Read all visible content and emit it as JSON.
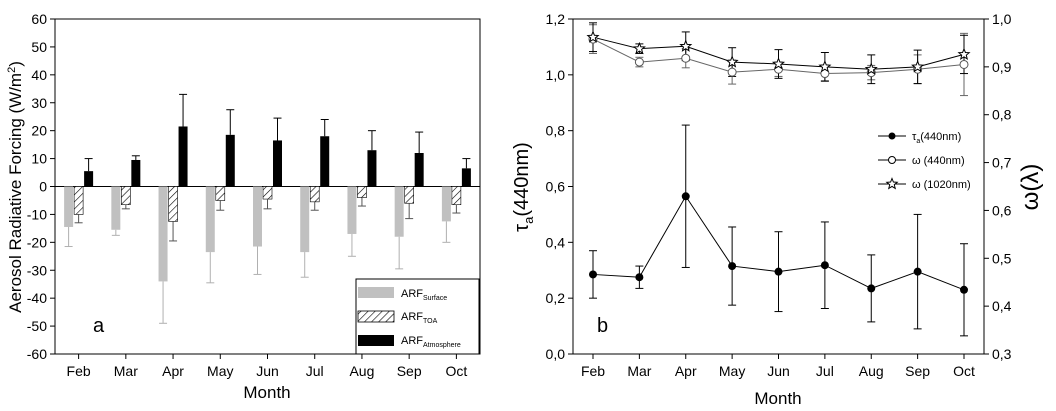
{
  "chart_data": [
    {
      "type": "bar",
      "panel_label": "a",
      "categories": [
        "Feb",
        "Mar",
        "Apr",
        "May",
        "Jun",
        "Jul",
        "Aug",
        "Sep",
        "Oct"
      ],
      "xlabel": "Month",
      "ylabel": "Aerosol Radiative Forcing (W/m",
      "ylabel_sup": "2",
      "ylabel_close": ")",
      "ylim": [
        -60,
        60
      ],
      "yticks": [
        -60,
        -50,
        -40,
        -30,
        -20,
        -10,
        0,
        10,
        20,
        30,
        40,
        50,
        60
      ],
      "legend_position": "bottom-right",
      "series": [
        {
          "name": "ARF",
          "name_sub": "Surface",
          "color": "#c0c0c0",
          "pattern": "solid",
          "values": [
            -14.5,
            -15.5,
            -34,
            -23.5,
            -21.5,
            -23.5,
            -17,
            -18,
            -12.5
          ],
          "errors": [
            7,
            2,
            15,
            11,
            10,
            9,
            8,
            11.5,
            7.5
          ]
        },
        {
          "name": "ARF",
          "name_sub": "TOA",
          "color": "#ffffff",
          "pattern": "hatch",
          "values": [
            -10,
            -6.5,
            -12.5,
            -5,
            -4.5,
            -5.5,
            -4,
            -6,
            -6.5
          ],
          "errors": [
            3,
            1.5,
            7,
            3.5,
            3.5,
            3,
            3,
            5.5,
            3
          ]
        },
        {
          "name": "ARF",
          "name_sub": "Atmosphere",
          "color": "#000000",
          "pattern": "solid",
          "values": [
            5.5,
            9.5,
            21.5,
            18.5,
            16.5,
            18,
            13,
            12,
            6.5
          ],
          "errors": [
            4.5,
            1.5,
            11.5,
            9,
            8,
            6,
            7,
            7.5,
            3.5
          ]
        }
      ]
    },
    {
      "type": "line",
      "panel_label": "b",
      "categories": [
        "Feb",
        "Mar",
        "Apr",
        "May",
        "Jun",
        "Jul",
        "Aug",
        "Sep",
        "Oct"
      ],
      "xlabel": "Month",
      "ylabel_left": "τ",
      "ylabel_left_sub": "a",
      "ylabel_left_rest": "(440nm)",
      "ylabel_right": "ω(λ)",
      "ylim_left": [
        0.0,
        1.2
      ],
      "yticks_left": [
        "0,0",
        "0,2",
        "0,4",
        "0,6",
        "0,8",
        "1,0",
        "1,2"
      ],
      "ylim_right": [
        0.3,
        1.0
      ],
      "yticks_right": [
        "0,3",
        "0,4",
        "0,5",
        "0,6",
        "0,7",
        "0,8",
        "0,9",
        "1,0"
      ],
      "legend_position": "right",
      "series": [
        {
          "name": "τ",
          "name_sub": "a",
          "name_rest": "(440nm)",
          "axis": "left",
          "marker": "filled-circle",
          "values": [
            0.285,
            0.275,
            0.565,
            0.315,
            0.295,
            0.318,
            0.235,
            0.295,
            0.23
          ],
          "errors": [
            0.085,
            0.04,
            0.255,
            0.14,
            0.143,
            0.155,
            0.12,
            0.205,
            0.165
          ]
        },
        {
          "name": "ω (440nm)",
          "axis": "right",
          "marker": "open-circle",
          "values": [
            0.958,
            0.91,
            0.918,
            0.889,
            0.895,
            0.886,
            0.888,
            0.895,
            0.905
          ],
          "errors": [
            0.03,
            0.01,
            0.02,
            0.025,
            0.015,
            0.015,
            0.015,
            0.03,
            0.065
          ]
        },
        {
          "name": "ω (1020nm)",
          "axis": "right",
          "marker": "open-star",
          "values": [
            0.962,
            0.938,
            0.943,
            0.91,
            0.906,
            0.9,
            0.895,
            0.9,
            0.926
          ],
          "errors": [
            0.03,
            0.01,
            0.03,
            0.03,
            0.03,
            0.03,
            0.03,
            0.035,
            0.04
          ]
        }
      ]
    }
  ]
}
